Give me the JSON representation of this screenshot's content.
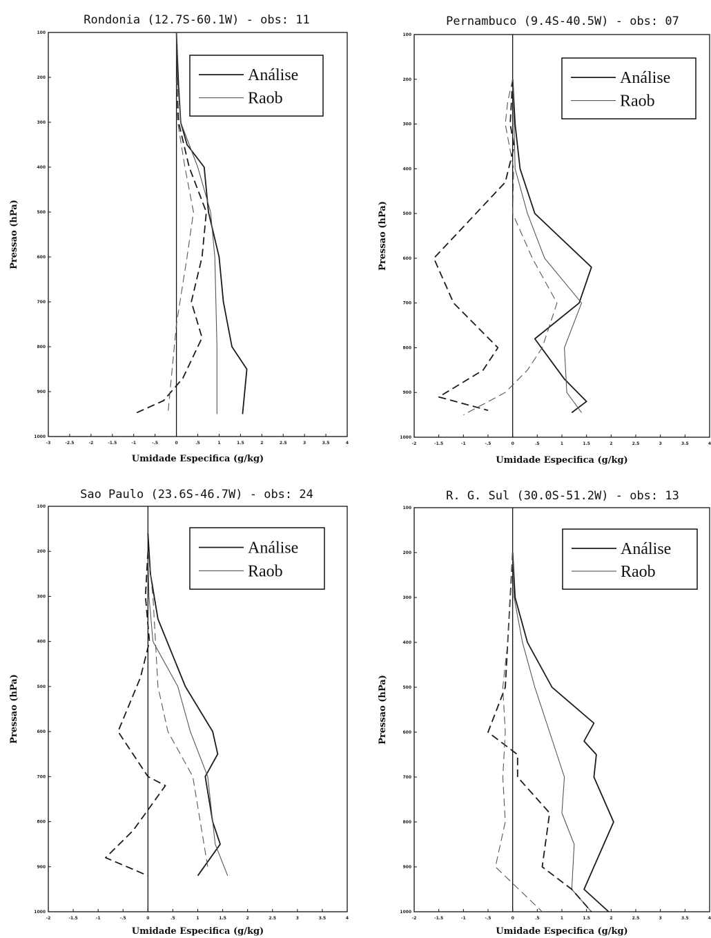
{
  "legend": {
    "analise": "Análise",
    "raob": "Raob"
  },
  "chart_data": [
    {
      "type": "line",
      "title": "Rondonia (12.7S-60.1W)  - obs: 11",
      "xlabel": "Umidade Especifica (g/kg)",
      "ylabel": "Pressao (hPa)",
      "xlim": [
        -3,
        4
      ],
      "ylim": [
        1000,
        100
      ],
      "xticks": [
        -3,
        -2.5,
        -2,
        -1.5,
        -1,
        -0.5,
        0,
        0.5,
        1,
        1.5,
        2,
        2.5,
        3,
        3.5,
        4
      ],
      "yticks": [
        100,
        200,
        300,
        400,
        500,
        600,
        700,
        800,
        900,
        1000
      ],
      "legend_position": "top-right",
      "series": [
        {
          "name": "Análise",
          "style": "solid",
          "weight": "thick",
          "points": [
            [
              0,
              100
            ],
            [
              0.02,
              150
            ],
            [
              0.05,
              220
            ],
            [
              0.1,
              300
            ],
            [
              0.25,
              350
            ],
            [
              0.65,
              400
            ],
            [
              0.75,
              500
            ],
            [
              1.0,
              600
            ],
            [
              1.1,
              700
            ],
            [
              1.3,
              800
            ],
            [
              1.65,
              850
            ],
            [
              1.55,
              950
            ]
          ]
        },
        {
          "name": "Raob",
          "style": "solid",
          "weight": "thin",
          "points": [
            [
              0,
              100
            ],
            [
              0.02,
              200
            ],
            [
              0.1,
              300
            ],
            [
              0.5,
              400
            ],
            [
              0.8,
              500
            ],
            [
              0.9,
              600
            ],
            [
              0.95,
              800
            ],
            [
              0.95,
              950
            ]
          ]
        },
        {
          "name": "Análise",
          "style": "dashed",
          "weight": "thick",
          "points": [
            [
              0,
              200
            ],
            [
              0.05,
              300
            ],
            [
              0.3,
              400
            ],
            [
              0.7,
              500
            ],
            [
              0.6,
              600
            ],
            [
              0.35,
              700
            ],
            [
              0.6,
              780
            ],
            [
              0.15,
              870
            ],
            [
              -0.3,
              920
            ],
            [
              -1.0,
              950
            ]
          ]
        },
        {
          "name": "Raob",
          "style": "dashed",
          "weight": "thin",
          "points": [
            [
              0,
              200
            ],
            [
              0.03,
              300
            ],
            [
              0.2,
              400
            ],
            [
              0.4,
              500
            ],
            [
              0.25,
              600
            ],
            [
              0,
              750
            ],
            [
              -0.1,
              850
            ],
            [
              -0.2,
              950
            ]
          ]
        }
      ]
    },
    {
      "type": "line",
      "title": "Pernambuco (9.4S-40.5W) - obs: 07",
      "xlabel": "Umidade Especifica (g/kg)",
      "ylabel": "Pressao (hPa)",
      "xlim": [
        -2,
        4
      ],
      "ylim": [
        1000,
        100
      ],
      "xticks": [
        -2,
        -1.5,
        -1,
        -0.5,
        0,
        0.5,
        1,
        1.5,
        2,
        2.5,
        3,
        3.5,
        4
      ],
      "yticks": [
        100,
        200,
        300,
        400,
        500,
        600,
        700,
        800,
        900,
        1000
      ],
      "legend_position": "top-right",
      "series": [
        {
          "name": "Análise",
          "style": "solid",
          "weight": "thick",
          "points": [
            [
              0,
              200
            ],
            [
              0.05,
              300
            ],
            [
              0.15,
              400
            ],
            [
              0.45,
              500
            ],
            [
              1.6,
              620
            ],
            [
              1.35,
              700
            ],
            [
              0.45,
              780
            ],
            [
              1.05,
              870
            ],
            [
              1.5,
              920
            ],
            [
              1.2,
              945
            ]
          ]
        },
        {
          "name": "Raob",
          "style": "solid",
          "weight": "thin",
          "points": [
            [
              0,
              200
            ],
            [
              0.03,
              300
            ],
            [
              0.05,
              400
            ],
            [
              0.3,
              500
            ],
            [
              0.65,
              600
            ],
            [
              1.4,
              700
            ],
            [
              1.05,
              800
            ],
            [
              1.1,
              900
            ],
            [
              1.4,
              945
            ]
          ]
        },
        {
          "name": "Análise",
          "style": "dashed",
          "weight": "thick",
          "points": [
            [
              0,
              200
            ],
            [
              -0.05,
              300
            ],
            [
              0.03,
              350
            ],
            [
              -0.15,
              430
            ],
            [
              -1.6,
              600
            ],
            [
              -1.2,
              700
            ],
            [
              -0.3,
              800
            ],
            [
              -0.6,
              850
            ],
            [
              -1.5,
              910
            ],
            [
              -0.5,
              940
            ]
          ]
        },
        {
          "name": "Raob",
          "style": "dashed",
          "weight": "thin",
          "points": [
            [
              0,
              200
            ],
            [
              -0.1,
              250
            ],
            [
              -0.15,
              300
            ],
            [
              0.02,
              400
            ],
            [
              0,
              500
            ],
            [
              0.4,
              600
            ],
            [
              0.9,
              700
            ],
            [
              0.6,
              800
            ],
            [
              0.3,
              850
            ],
            [
              -0.15,
              900
            ],
            [
              -1.0,
              950
            ]
          ]
        }
      ]
    },
    {
      "type": "line",
      "title": "Sao Paulo (23.6S-46.7W) - obs: 24",
      "xlabel": "Umidade Especifica (g/kg)",
      "ylabel": "Pressao (hPa)",
      "xlim": [
        -2,
        4
      ],
      "ylim": [
        1000,
        100
      ],
      "xticks": [
        -2,
        -1.5,
        -1,
        -0.5,
        0,
        0.5,
        1,
        1.5,
        2,
        2.5,
        3,
        3.5,
        4
      ],
      "yticks": [
        100,
        200,
        300,
        400,
        500,
        600,
        700,
        800,
        900,
        1000
      ],
      "legend_position": "top-right",
      "series": [
        {
          "name": "Análise",
          "style": "solid",
          "weight": "thick",
          "points": [
            [
              0,
              160
            ],
            [
              0.05,
              250
            ],
            [
              0.2,
              350
            ],
            [
              0.75,
              500
            ],
            [
              1.3,
              600
            ],
            [
              1.4,
              650
            ],
            [
              1.15,
              700
            ],
            [
              1.3,
              800
            ],
            [
              1.45,
              850
            ],
            [
              1.0,
              920
            ]
          ]
        },
        {
          "name": "Raob",
          "style": "solid",
          "weight": "thin",
          "points": [
            [
              0,
              200
            ],
            [
              0.02,
              300
            ],
            [
              0.1,
              400
            ],
            [
              0.6,
              500
            ],
            [
              0.85,
              600
            ],
            [
              1.2,
              700
            ],
            [
              1.3,
              800
            ],
            [
              1.35,
              850
            ],
            [
              1.6,
              920
            ]
          ]
        },
        {
          "name": "Análise",
          "style": "dashed",
          "weight": "thick",
          "points": [
            [
              0,
              200
            ],
            [
              -0.05,
              300
            ],
            [
              0.03,
              400
            ],
            [
              -0.15,
              480
            ],
            [
              -0.6,
              600
            ],
            [
              0,
              700
            ],
            [
              0.35,
              720
            ],
            [
              -0.3,
              820
            ],
            [
              -0.85,
              880
            ],
            [
              0,
              920
            ]
          ]
        },
        {
          "name": "Raob",
          "style": "dashed",
          "weight": "thin",
          "points": [
            [
              0,
              200
            ],
            [
              0.1,
              300
            ],
            [
              0.15,
              400
            ],
            [
              0.2,
              500
            ],
            [
              0.4,
              600
            ],
            [
              0.9,
              700
            ],
            [
              1.05,
              800
            ],
            [
              1.2,
              900
            ]
          ]
        }
      ]
    },
    {
      "type": "line",
      "title": "R. G. Sul (30.0S-51.2W) - obs: 13",
      "xlabel": "Umidade Especifica (g/kg)",
      "ylabel": "Pressao (hPa)",
      "xlim": [
        -2,
        4
      ],
      "ylim": [
        1000,
        100
      ],
      "xticks": [
        -2,
        -1.5,
        -1,
        -0.5,
        0,
        0.5,
        1,
        1.5,
        2,
        2.5,
        3,
        3.5,
        4
      ],
      "yticks": [
        100,
        200,
        300,
        400,
        500,
        600,
        700,
        800,
        900,
        1000
      ],
      "legend_position": "top-right",
      "series": [
        {
          "name": "Análise",
          "style": "solid",
          "weight": "thick",
          "points": [
            [
              0,
              200
            ],
            [
              0.05,
              300
            ],
            [
              0.3,
              400
            ],
            [
              0.8,
              500
            ],
            [
              1.65,
              580
            ],
            [
              1.45,
              620
            ],
            [
              1.7,
              650
            ],
            [
              1.65,
              700
            ],
            [
              2.05,
              800
            ],
            [
              1.45,
              950
            ],
            [
              1.95,
              1000
            ]
          ]
        },
        {
          "name": "Raob",
          "style": "solid",
          "weight": "thin",
          "points": [
            [
              0,
              200
            ],
            [
              0.03,
              300
            ],
            [
              0.2,
              400
            ],
            [
              0.45,
              500
            ],
            [
              0.75,
              600
            ],
            [
              1.05,
              700
            ],
            [
              1.0,
              780
            ],
            [
              1.25,
              850
            ],
            [
              1.2,
              950
            ],
            [
              1.6,
              1000
            ]
          ]
        },
        {
          "name": "Análise",
          "style": "dashed",
          "weight": "thick",
          "points": [
            [
              0,
              200
            ],
            [
              -0.1,
              400
            ],
            [
              -0.15,
              500
            ],
            [
              -0.5,
              600
            ],
            [
              0.1,
              650
            ],
            [
              0.1,
              700
            ],
            [
              0.75,
              780
            ],
            [
              0.6,
              900
            ],
            [
              1.2,
              950
            ],
            [
              1.6,
              1000
            ]
          ]
        },
        {
          "name": "Raob",
          "style": "dashed",
          "weight": "thin",
          "points": [
            [
              0,
              200
            ],
            [
              -0.05,
              300
            ],
            [
              -0.1,
              400
            ],
            [
              -0.2,
              500
            ],
            [
              -0.15,
              600
            ],
            [
              -0.2,
              700
            ],
            [
              -0.15,
              800
            ],
            [
              -0.35,
              900
            ],
            [
              0.6,
              1000
            ]
          ]
        }
      ]
    }
  ]
}
